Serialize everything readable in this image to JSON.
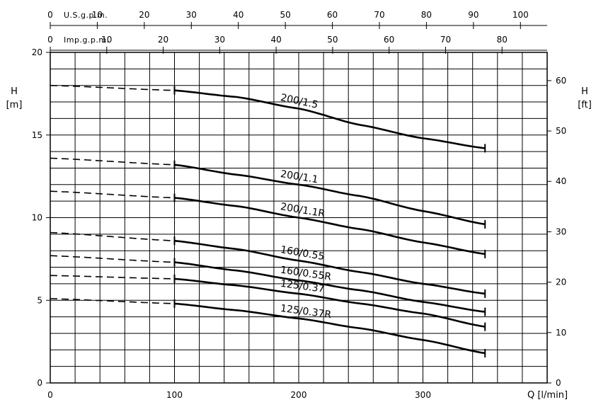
{
  "chart_data": {
    "type": "line",
    "title": "",
    "x": {
      "label": "Q [l/min]",
      "range": [
        0,
        400
      ],
      "ticks": [
        0,
        100,
        200,
        300
      ]
    },
    "y_left": {
      "label_top": "H",
      "label_bottom": "[m]",
      "range": [
        0,
        20
      ],
      "ticks": [
        0,
        5,
        10,
        15,
        20
      ]
    },
    "y_right": {
      "label_top": "H",
      "label_bottom": "[ft]",
      "range_ft": [
        0,
        65.6
      ],
      "ticks": [
        0,
        10,
        20,
        30,
        40,
        50,
        60
      ]
    },
    "x_top_usgpm": {
      "label": "U.S.g.p.m.",
      "ticks": [
        0,
        10,
        20,
        30,
        40,
        50,
        60,
        70,
        80,
        90,
        100
      ],
      "lpm_per_unit": 3.785
    },
    "x_top_impgpm": {
      "label": "Imp.g.p.m.",
      "ticks": [
        0,
        10,
        20,
        30,
        40,
        50,
        60,
        70,
        80
      ],
      "lpm_per_unit": 4.546
    },
    "grid": true,
    "dashed_segment_end_q": 100,
    "series": [
      {
        "name": "200/1.5",
        "x": [
          0,
          100,
          150,
          200,
          250,
          300,
          350
        ],
        "y": [
          18.0,
          17.7,
          17.3,
          16.6,
          15.6,
          14.8,
          14.2
        ]
      },
      {
        "name": "200/1.1",
        "x": [
          0,
          100,
          150,
          200,
          250,
          300,
          350
        ],
        "y": [
          13.6,
          13.2,
          12.6,
          12.0,
          11.3,
          10.4,
          9.6
        ]
      },
      {
        "name": "200/1.1R",
        "x": [
          0,
          100,
          150,
          200,
          250,
          300,
          350
        ],
        "y": [
          11.6,
          11.2,
          10.7,
          10.0,
          9.3,
          8.5,
          7.8
        ]
      },
      {
        "name": "160/0.55",
        "x": [
          0,
          100,
          150,
          200,
          250,
          300,
          350
        ],
        "y": [
          9.1,
          8.6,
          8.1,
          7.4,
          6.7,
          6.0,
          5.4
        ]
      },
      {
        "name": "160/0.55R",
        "x": [
          0,
          100,
          150,
          200,
          250,
          300,
          350
        ],
        "y": [
          7.7,
          7.3,
          6.8,
          6.2,
          5.6,
          4.9,
          4.3
        ]
      },
      {
        "name": "125/0.37",
        "x": [
          0,
          100,
          150,
          200,
          250,
          300,
          350
        ],
        "y": [
          6.5,
          6.3,
          5.9,
          5.4,
          4.8,
          4.2,
          3.4
        ]
      },
      {
        "name": "125/0.37R",
        "x": [
          0,
          100,
          150,
          200,
          250,
          300,
          350
        ],
        "y": [
          5.1,
          4.8,
          4.4,
          3.9,
          3.3,
          2.6,
          1.8
        ]
      }
    ]
  }
}
